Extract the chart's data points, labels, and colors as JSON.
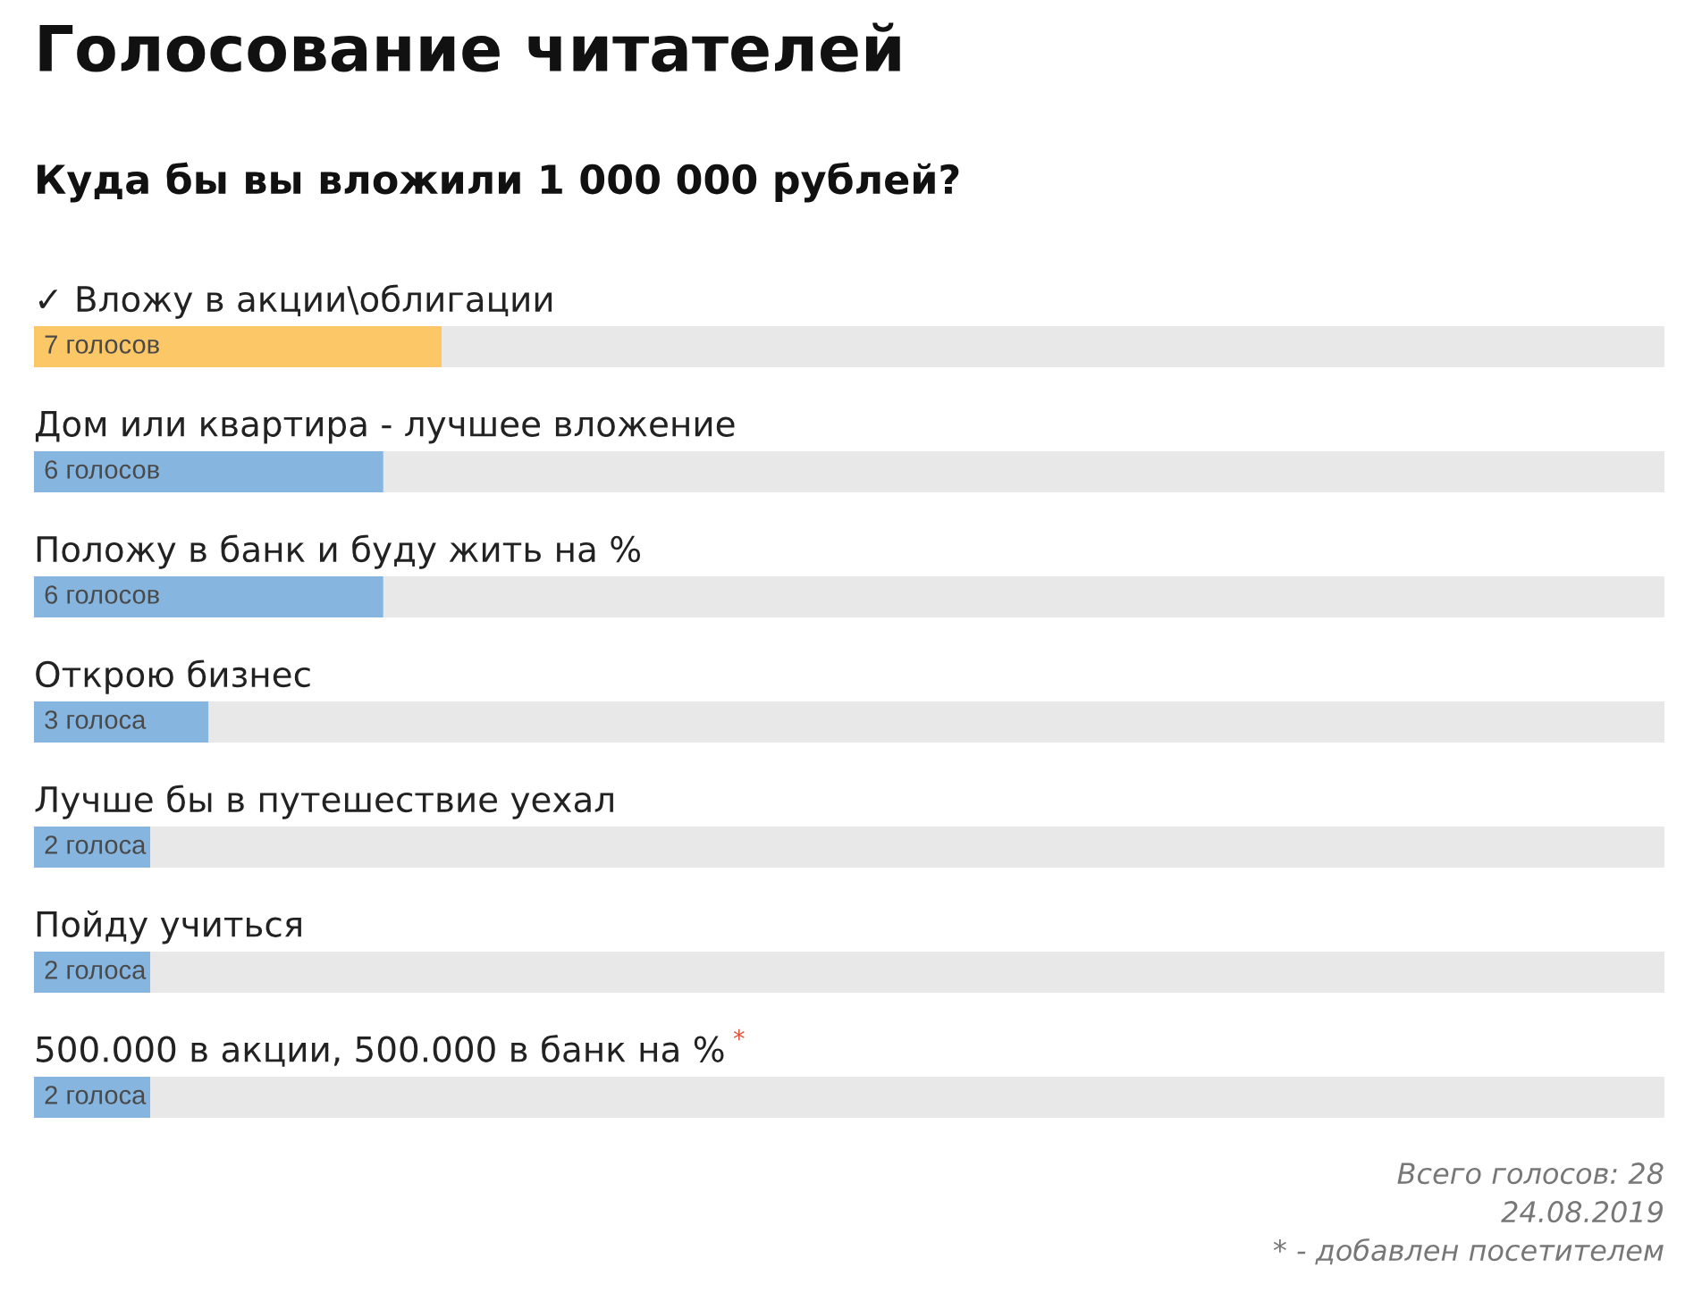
{
  "chart_data": {
    "type": "bar",
    "orientation": "horizontal",
    "stacked": true,
    "title": "Голосование читателей",
    "subtitle": "Куда бы вы вложили 1 000 000 рублей?",
    "categories": [
      "✓ Вложу в акции\\облигации",
      "Дом или квартира - лучшее вложение",
      "Положу в банк и буду жить на %",
      "Открою бизнес",
      "Лучше бы в путешествие уехал",
      "Пойду учиться",
      "500.000 в акции, 500.000 в банк на %$^{*}$"
    ],
    "series": [
      {
        "values": [
          7,
          6,
          6,
          3,
          2,
          2,
          2
        ],
        "colors": [
          "#fcc766",
          "#86b6e0",
          "#86b6e0",
          "#86b6e0",
          "#86b6e0",
          "#86b6e0",
          "#86b6e0"
        ],
        "value_labels": [
          "7 голосов",
          "6 голосов",
          "6 голосов",
          "3 голоса",
          "2 голоса",
          "2 голоса",
          "2 голоса"
        ]
      },
      {
        "values": [
          21,
          22,
          22,
          25,
          26,
          26,
          26
        ],
        "color": "#e8e8e8"
      }
    ],
    "xlim": [
      0,
      28
    ],
    "tick_labels": "y",
    "annotations": [
      "Всего голосов: 28",
      "24.08.2019",
      "* - добавлен посетителем"
    ]
  }
}
